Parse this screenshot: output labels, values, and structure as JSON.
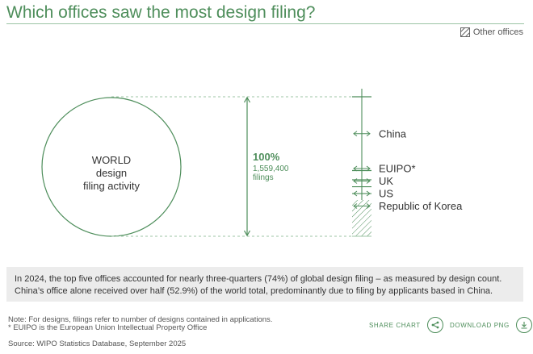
{
  "title": "Which offices saw the most design filing?",
  "legend": {
    "label": "Other offices",
    "icon": "hatched-square-icon"
  },
  "chart_data": {
    "type": "stacked-bar",
    "circle_label": [
      "WORLD",
      "design",
      "filing activity"
    ],
    "total": {
      "percent_label": "100%",
      "value_label": "1,559,400",
      "unit": "filings",
      "value": 1559400
    },
    "segments": [
      {
        "name": "China",
        "share": 52.9
      },
      {
        "name": "EUIPO*",
        "share": 6.6
      },
      {
        "name": "UK",
        "share": 5.0
      },
      {
        "name": "US",
        "share": 4.9
      },
      {
        "name": "Republic of Korea",
        "share": 4.6
      },
      {
        "name": "Other offices",
        "share": 26.0
      }
    ],
    "colors": {
      "accent": "#4e8e5b",
      "light": "#9cc4a4"
    }
  },
  "note": {
    "line1": "In 2024, the top five offices accounted for nearly three-quarters (74%) of global design filing – as measured by design count.",
    "line2": "China’s office alone received over half (52.9%) of the world total, predominantly due to filing by applicants based in China."
  },
  "footnotes": {
    "line1": "Note: For designs, filings refer to number of designs contained in applications.",
    "line2": "* EUIPO is the European Union Intellectual Property Office"
  },
  "source": "Source: WIPO Statistics Database, September 2025",
  "actions": {
    "share": {
      "label": "SHARE CHART",
      "icon": "share-icon"
    },
    "download": {
      "label": "DOWNLOAD PNG",
      "icon": "download-icon"
    }
  }
}
